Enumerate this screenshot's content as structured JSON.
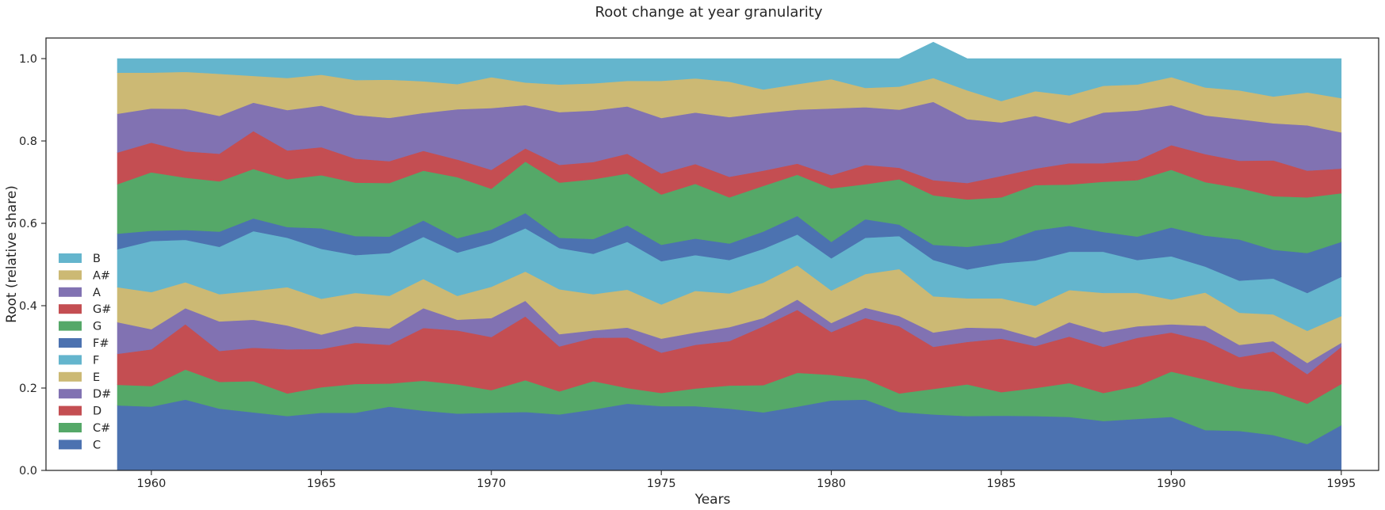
{
  "chart_data": {
    "type": "area",
    "stacked": true,
    "title": "Root change at year granularity",
    "xlabel": "Years",
    "ylabel": "Root (relative share)",
    "xlim": [
      1956.9,
      1996.1
    ],
    "ylim": [
      0.0,
      1.05
    ],
    "xticks": [
      "1960",
      "1965",
      "1970",
      "1975",
      "1980",
      "1985",
      "1990",
      "1995"
    ],
    "yticks": [
      "0.0",
      "0.2",
      "0.4",
      "0.6",
      "0.8",
      "1.0"
    ],
    "grid": false,
    "legend_position": "lower-left",
    "x": [
      1959,
      1960,
      1961,
      1962,
      1963,
      1964,
      1965,
      1966,
      1967,
      1968,
      1969,
      1970,
      1971,
      1972,
      1973,
      1974,
      1975,
      1976,
      1977,
      1978,
      1979,
      1980,
      1981,
      1982,
      1983,
      1984,
      1985,
      1986,
      1987,
      1988,
      1989,
      1990,
      1991,
      1992,
      1993,
      1994,
      1995
    ],
    "series": [
      {
        "name": "C",
        "color": "#4c72b0",
        "values": [
          0.158,
          0.155,
          0.172,
          0.15,
          0.141,
          0.132,
          0.14,
          0.14,
          0.155,
          0.145,
          0.138,
          0.14,
          0.142,
          0.136,
          0.148,
          0.162,
          0.156,
          0.156,
          0.15,
          0.141,
          0.155,
          0.17,
          0.172,
          0.142,
          0.136,
          0.132,
          0.133,
          0.132,
          0.13,
          0.12,
          0.125,
          0.13,
          0.098,
          0.096,
          0.086,
          0.064,
          0.11
        ]
      },
      {
        "name": "C#",
        "color": "#55a868",
        "values": [
          0.05,
          0.05,
          0.073,
          0.065,
          0.076,
          0.055,
          0.062,
          0.07,
          0.056,
          0.073,
          0.071,
          0.055,
          0.077,
          0.056,
          0.069,
          0.038,
          0.032,
          0.043,
          0.056,
          0.066,
          0.082,
          0.062,
          0.05,
          0.045,
          0.062,
          0.077,
          0.057,
          0.068,
          0.082,
          0.068,
          0.08,
          0.11,
          0.123,
          0.104,
          0.105,
          0.098,
          0.1
        ]
      },
      {
        "name": "D",
        "color": "#c44e52",
        "values": [
          0.075,
          0.089,
          0.11,
          0.075,
          0.081,
          0.107,
          0.093,
          0.1,
          0.094,
          0.128,
          0.131,
          0.129,
          0.155,
          0.109,
          0.105,
          0.123,
          0.098,
          0.106,
          0.108,
          0.143,
          0.153,
          0.104,
          0.148,
          0.163,
          0.102,
          0.103,
          0.13,
          0.102,
          0.113,
          0.112,
          0.117,
          0.095,
          0.094,
          0.075,
          0.098,
          0.072,
          0.09
        ]
      },
      {
        "name": "D#",
        "color": "#8172b2",
        "values": [
          0.077,
          0.049,
          0.039,
          0.072,
          0.068,
          0.058,
          0.035,
          0.04,
          0.04,
          0.048,
          0.026,
          0.046,
          0.038,
          0.03,
          0.018,
          0.024,
          0.034,
          0.03,
          0.034,
          0.02,
          0.025,
          0.022,
          0.025,
          0.025,
          0.035,
          0.035,
          0.025,
          0.02,
          0.035,
          0.036,
          0.028,
          0.02,
          0.036,
          0.03,
          0.025,
          0.027,
          0.01
        ]
      },
      {
        "name": "E",
        "color": "#ccb974",
        "values": [
          0.085,
          0.09,
          0.063,
          0.066,
          0.07,
          0.093,
          0.087,
          0.081,
          0.079,
          0.071,
          0.058,
          0.076,
          0.071,
          0.109,
          0.088,
          0.092,
          0.083,
          0.101,
          0.082,
          0.086,
          0.083,
          0.079,
          0.082,
          0.114,
          0.088,
          0.071,
          0.073,
          0.078,
          0.078,
          0.095,
          0.081,
          0.06,
          0.081,
          0.078,
          0.065,
          0.078,
          0.065
        ]
      },
      {
        "name": "F",
        "color": "#64b5cd",
        "values": [
          0.092,
          0.124,
          0.103,
          0.115,
          0.145,
          0.12,
          0.121,
          0.092,
          0.104,
          0.102,
          0.105,
          0.106,
          0.105,
          0.1,
          0.098,
          0.116,
          0.105,
          0.087,
          0.081,
          0.082,
          0.075,
          0.078,
          0.088,
          0.08,
          0.088,
          0.07,
          0.085,
          0.11,
          0.093,
          0.1,
          0.08,
          0.105,
          0.063,
          0.078,
          0.087,
          0.092,
          0.095
        ]
      },
      {
        "name": "F#",
        "color": "#4c72b0",
        "values": [
          0.038,
          0.025,
          0.024,
          0.037,
          0.031,
          0.026,
          0.05,
          0.046,
          0.04,
          0.04,
          0.035,
          0.033,
          0.037,
          0.025,
          0.036,
          0.04,
          0.04,
          0.04,
          0.04,
          0.042,
          0.045,
          0.04,
          0.045,
          0.028,
          0.037,
          0.055,
          0.05,
          0.073,
          0.063,
          0.048,
          0.057,
          0.07,
          0.075,
          0.1,
          0.07,
          0.097,
          0.085
        ]
      },
      {
        "name": "G",
        "color": "#55a868",
        "values": [
          0.12,
          0.142,
          0.127,
          0.122,
          0.12,
          0.116,
          0.129,
          0.13,
          0.13,
          0.121,
          0.148,
          0.099,
          0.125,
          0.134,
          0.145,
          0.126,
          0.122,
          0.133,
          0.112,
          0.111,
          0.1,
          0.13,
          0.085,
          0.11,
          0.12,
          0.115,
          0.11,
          0.11,
          0.1,
          0.122,
          0.137,
          0.14,
          0.13,
          0.125,
          0.13,
          0.135,
          0.118
        ]
      },
      {
        "name": "G#",
        "color": "#c44e52",
        "values": [
          0.077,
          0.072,
          0.064,
          0.067,
          0.092,
          0.07,
          0.068,
          0.058,
          0.053,
          0.048,
          0.043,
          0.046,
          0.032,
          0.043,
          0.042,
          0.048,
          0.051,
          0.048,
          0.05,
          0.037,
          0.027,
          0.032,
          0.047,
          0.028,
          0.037,
          0.04,
          0.052,
          0.04,
          0.052,
          0.045,
          0.048,
          0.06,
          0.068,
          0.066,
          0.087,
          0.065,
          0.06
        ]
      },
      {
        "name": "A",
        "color": "#8172b2",
        "values": [
          0.094,
          0.083,
          0.103,
          0.092,
          0.069,
          0.098,
          0.101,
          0.106,
          0.105,
          0.092,
          0.122,
          0.15,
          0.105,
          0.128,
          0.125,
          0.115,
          0.135,
          0.125,
          0.145,
          0.14,
          0.131,
          0.162,
          0.14,
          0.141,
          0.19,
          0.155,
          0.13,
          0.128,
          0.097,
          0.123,
          0.121,
          0.097,
          0.094,
          0.101,
          0.09,
          0.11,
          0.088
        ]
      },
      {
        "name": "A#",
        "color": "#ccb974",
        "values": [
          0.1,
          0.087,
          0.09,
          0.102,
          0.065,
          0.078,
          0.075,
          0.085,
          0.093,
          0.077,
          0.061,
          0.075,
          0.055,
          0.067,
          0.066,
          0.062,
          0.09,
          0.083,
          0.086,
          0.057,
          0.062,
          0.071,
          0.047,
          0.056,
          0.058,
          0.07,
          0.052,
          0.06,
          0.068,
          0.065,
          0.063,
          0.068,
          0.068,
          0.07,
          0.065,
          0.08,
          0.083
        ]
      },
      {
        "name": "B",
        "color": "#64b5cd",
        "values": [
          0.034,
          0.034,
          0.032,
          0.037,
          0.042,
          0.047,
          0.039,
          0.052,
          0.051,
          0.055,
          0.062,
          0.045,
          0.058,
          0.063,
          0.06,
          0.054,
          0.054,
          0.048,
          0.056,
          0.075,
          0.062,
          0.05,
          0.071,
          0.068,
          0.087,
          0.077,
          0.103,
          0.079,
          0.089,
          0.066,
          0.063,
          0.045,
          0.07,
          0.077,
          0.092,
          0.082,
          0.096
        ]
      }
    ]
  }
}
